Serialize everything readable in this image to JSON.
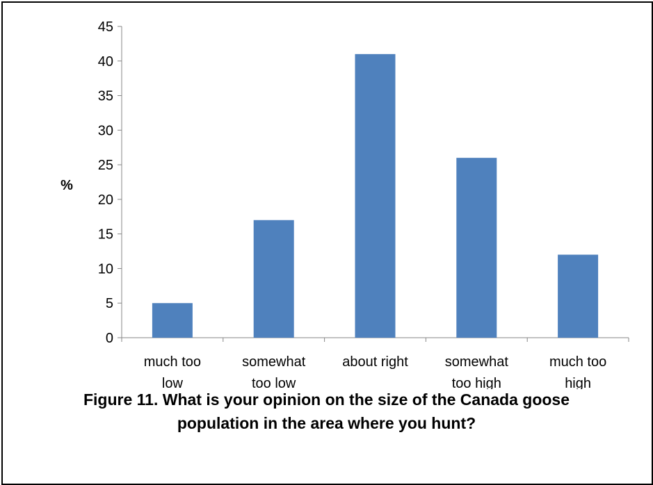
{
  "chart_data": {
    "type": "bar",
    "categories": [
      [
        "much too",
        "low"
      ],
      [
        "somewhat",
        "too low"
      ],
      [
        "about right"
      ],
      [
        "somewhat",
        "too high"
      ],
      [
        "much too",
        "high"
      ]
    ],
    "values": [
      5,
      17,
      41,
      26,
      12
    ],
    "ylabel": "%",
    "xlabel": "",
    "ylim": [
      0,
      45
    ],
    "yticks": [
      0,
      5,
      10,
      15,
      20,
      25,
      30,
      35,
      40,
      45
    ],
    "bar_color": "#4f81bd",
    "grid": false,
    "legend": "none"
  },
  "caption": {
    "line1": "Figure 11. What is your opinion on the size of the Canada goose",
    "line2": "population in the area where you hunt?"
  }
}
